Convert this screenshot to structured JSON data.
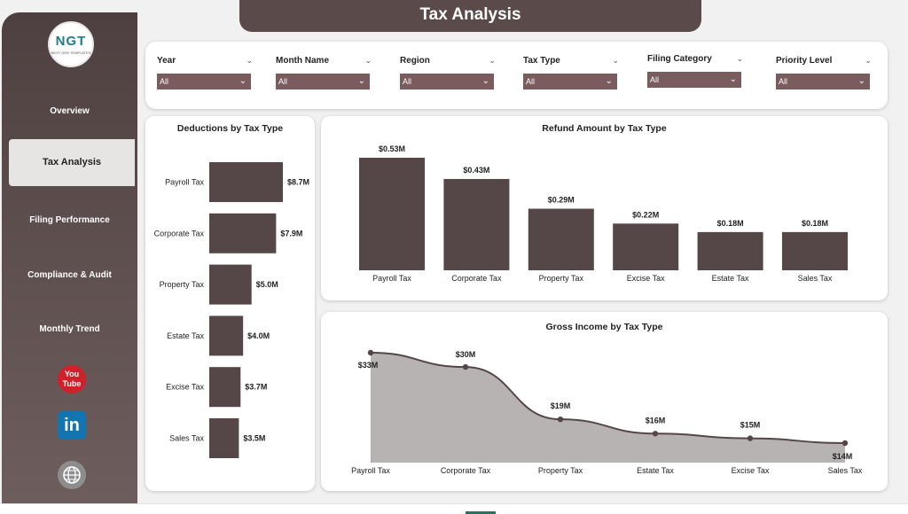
{
  "header": {
    "title": "Tax Analysis"
  },
  "logo": {
    "text": "NGT",
    "subtext": "NEXT GEN TEMPLATES"
  },
  "sidebar": {
    "items": [
      {
        "label": "Overview"
      },
      {
        "label": "Tax Analysis",
        "active": true
      },
      {
        "label": "Filing Performance"
      },
      {
        "label": "Compliance & Audit"
      },
      {
        "label": "Monthly Trend"
      }
    ],
    "social": {
      "youtube_text": "You Tube",
      "linkedin_text": "in"
    }
  },
  "filters": [
    {
      "label": "Year",
      "value": "All"
    },
    {
      "label": "Month Name",
      "value": "All"
    },
    {
      "label": "Region",
      "value": "All"
    },
    {
      "label": "Tax Type",
      "value": "All"
    },
    {
      "label": "Filing Category",
      "value": "All"
    },
    {
      "label": "Priority Level",
      "value": "All"
    }
  ],
  "colors": {
    "bar": "#554748",
    "accent": "#7a5c5e",
    "sidebar": "#4e4040",
    "area": "#b8b3b3"
  },
  "chart_data": [
    {
      "type": "bar",
      "orientation": "horizontal",
      "title": "Deductions by Tax Type",
      "categories": [
        "Payroll Tax",
        "Corporate Tax",
        "Property Tax",
        "Estate Tax",
        "Excise Tax",
        "Sales Tax"
      ],
      "values": [
        8.7,
        7.9,
        5.0,
        4.0,
        3.7,
        3.5
      ],
      "labels": [
        "$8.7M",
        "$7.9M",
        "$5.0M",
        "$4.0M",
        "$3.7M",
        "$3.5M"
      ],
      "unit": "M"
    },
    {
      "type": "bar",
      "title": "Refund Amount by Tax Type",
      "categories": [
        "Payroll Tax",
        "Corporate Tax",
        "Property Tax",
        "Excise Tax",
        "Estate Tax",
        "Sales Tax"
      ],
      "values": [
        0.53,
        0.43,
        0.29,
        0.22,
        0.18,
        0.18
      ],
      "labels": [
        "$0.53M",
        "$0.43M",
        "$0.29M",
        "$0.22M",
        "$0.18M",
        "$0.18M"
      ],
      "unit": "M"
    },
    {
      "type": "area",
      "title": "Gross Income by Tax Type",
      "categories": [
        "Payroll Tax",
        "Corporate Tax",
        "Property Tax",
        "Estate Tax",
        "Excise Tax",
        "Sales Tax"
      ],
      "values": [
        33,
        30,
        19,
        16,
        15,
        14
      ],
      "labels": [
        "$33M",
        "$30M",
        "$19M",
        "$16M",
        "$15M",
        "$14M"
      ],
      "unit": "M"
    }
  ]
}
